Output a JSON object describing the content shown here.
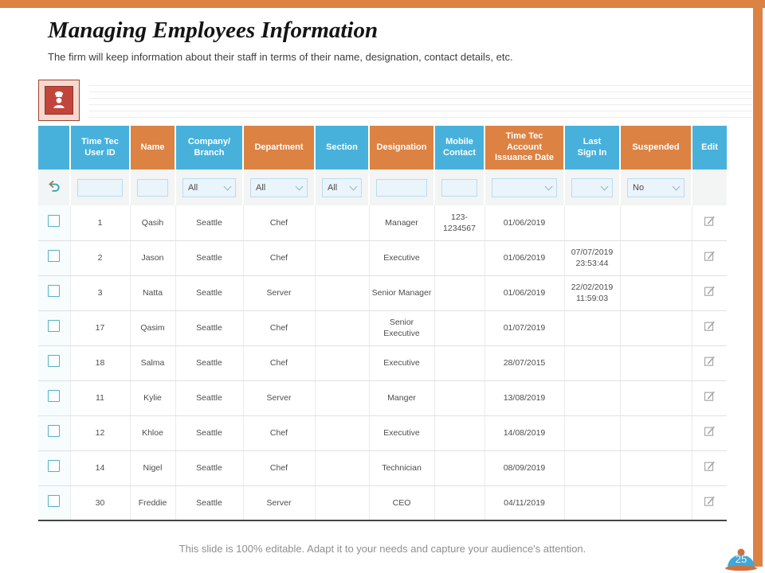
{
  "slide": {
    "title": "Managing Employees Information",
    "subtitle": "The firm will keep information about their staff in terms of their name, designation, contact details, etc.",
    "footer": "This slide is 100% editable. Adapt it to your needs and capture your audience's attention.",
    "page_number": "25"
  },
  "colors": {
    "accent_orange": "#dc8243",
    "header_blue": "#47b1dc",
    "badge_blue": "#41a7d7",
    "icon_red": "#c2453c"
  },
  "icons": {
    "chef_icon": "chef figure with hat",
    "reset_icon": "undo curved arrow",
    "edit_icon": "pencil in square",
    "chevron_icon": "chevron-down",
    "checkbox_icon": "empty checkbox"
  },
  "table": {
    "columns": [
      {
        "key": "select",
        "label": "",
        "tone": "blue"
      },
      {
        "key": "user_id",
        "label": "Time Tec\nUser ID",
        "tone": "blue"
      },
      {
        "key": "name",
        "label": "Name",
        "tone": "orange"
      },
      {
        "key": "company",
        "label": "Company/\nBranch",
        "tone": "blue"
      },
      {
        "key": "department",
        "label": "Department",
        "tone": "orange"
      },
      {
        "key": "section",
        "label": "Section",
        "tone": "blue"
      },
      {
        "key": "designation",
        "label": "Designation",
        "tone": "orange"
      },
      {
        "key": "mobile",
        "label": "Mobile\nContact",
        "tone": "blue"
      },
      {
        "key": "issuance_date",
        "label": "Time Tec\nAccount\nIssuance Date",
        "tone": "orange"
      },
      {
        "key": "last_sign_in",
        "label": "Last\nSign In",
        "tone": "blue"
      },
      {
        "key": "suspended",
        "label": "Suspended",
        "tone": "orange"
      },
      {
        "key": "edit",
        "label": "Edit",
        "tone": "blue"
      }
    ],
    "filters": [
      {
        "key": "reset",
        "type": "reset",
        "value": ""
      },
      {
        "key": "user_id",
        "type": "input",
        "value": ""
      },
      {
        "key": "name",
        "type": "input",
        "value": ""
      },
      {
        "key": "company",
        "type": "select",
        "value": "All"
      },
      {
        "key": "department",
        "type": "select",
        "value": "All"
      },
      {
        "key": "section",
        "type": "select",
        "value": "All"
      },
      {
        "key": "designation",
        "type": "input",
        "value": ""
      },
      {
        "key": "mobile",
        "type": "input",
        "value": ""
      },
      {
        "key": "issuance_date",
        "type": "select",
        "value": ""
      },
      {
        "key": "last_sign_in",
        "type": "select",
        "value": ""
      },
      {
        "key": "suspended",
        "type": "select",
        "value": "No"
      },
      {
        "key": "edit",
        "type": "none",
        "value": ""
      }
    ],
    "rows": [
      {
        "user_id": "1",
        "name": "Qasih",
        "company": "Seattle",
        "department": "Chef",
        "section": "",
        "designation": "Manager",
        "mobile": "123-1234567",
        "issuance_date": "01/06/2019",
        "last_sign_in": "",
        "suspended": ""
      },
      {
        "user_id": "2",
        "name": "Jason",
        "company": "Seattle",
        "department": "Chef",
        "section": "",
        "designation": "Executive",
        "mobile": "",
        "issuance_date": "01/06/2019",
        "last_sign_in": "07/07/2019 23:53:44",
        "suspended": ""
      },
      {
        "user_id": "3",
        "name": "Natta",
        "company": "Seattle",
        "department": "Server",
        "section": "",
        "designation": "Senior Manager",
        "mobile": "",
        "issuance_date": "01/06/2019",
        "last_sign_in": "22/02/2019 11:59:03",
        "suspended": ""
      },
      {
        "user_id": "17",
        "name": "Qasim",
        "company": "Seattle",
        "department": "Chef",
        "section": "",
        "designation": "Senior Executive",
        "mobile": "",
        "issuance_date": "01/07/2019",
        "last_sign_in": "",
        "suspended": ""
      },
      {
        "user_id": "18",
        "name": "Salma",
        "company": "Seattle",
        "department": "Chef",
        "section": "",
        "designation": "Executive",
        "mobile": "",
        "issuance_date": "28/07/2015",
        "last_sign_in": "",
        "suspended": ""
      },
      {
        "user_id": "11",
        "name": "Kylie",
        "company": "Seattle",
        "department": "Server",
        "section": "",
        "designation": "Manger",
        "mobile": "",
        "issuance_date": "13/08/2019",
        "last_sign_in": "",
        "suspended": ""
      },
      {
        "user_id": "12",
        "name": "Khloe",
        "company": "Seattle",
        "department": "Chef",
        "section": "",
        "designation": "Executive",
        "mobile": "",
        "issuance_date": "14/08/2019",
        "last_sign_in": "",
        "suspended": ""
      },
      {
        "user_id": "14",
        "name": "Nigel",
        "company": "Seattle",
        "department": "Chef",
        "section": "",
        "designation": "Technician",
        "mobile": "",
        "issuance_date": "08/09/2019",
        "last_sign_in": "",
        "suspended": ""
      },
      {
        "user_id": "30",
        "name": "Freddie",
        "company": "Seattle",
        "department": "Server",
        "section": "",
        "designation": "CEO",
        "mobile": "",
        "issuance_date": "04/11/2019",
        "last_sign_in": "",
        "suspended": ""
      }
    ]
  }
}
